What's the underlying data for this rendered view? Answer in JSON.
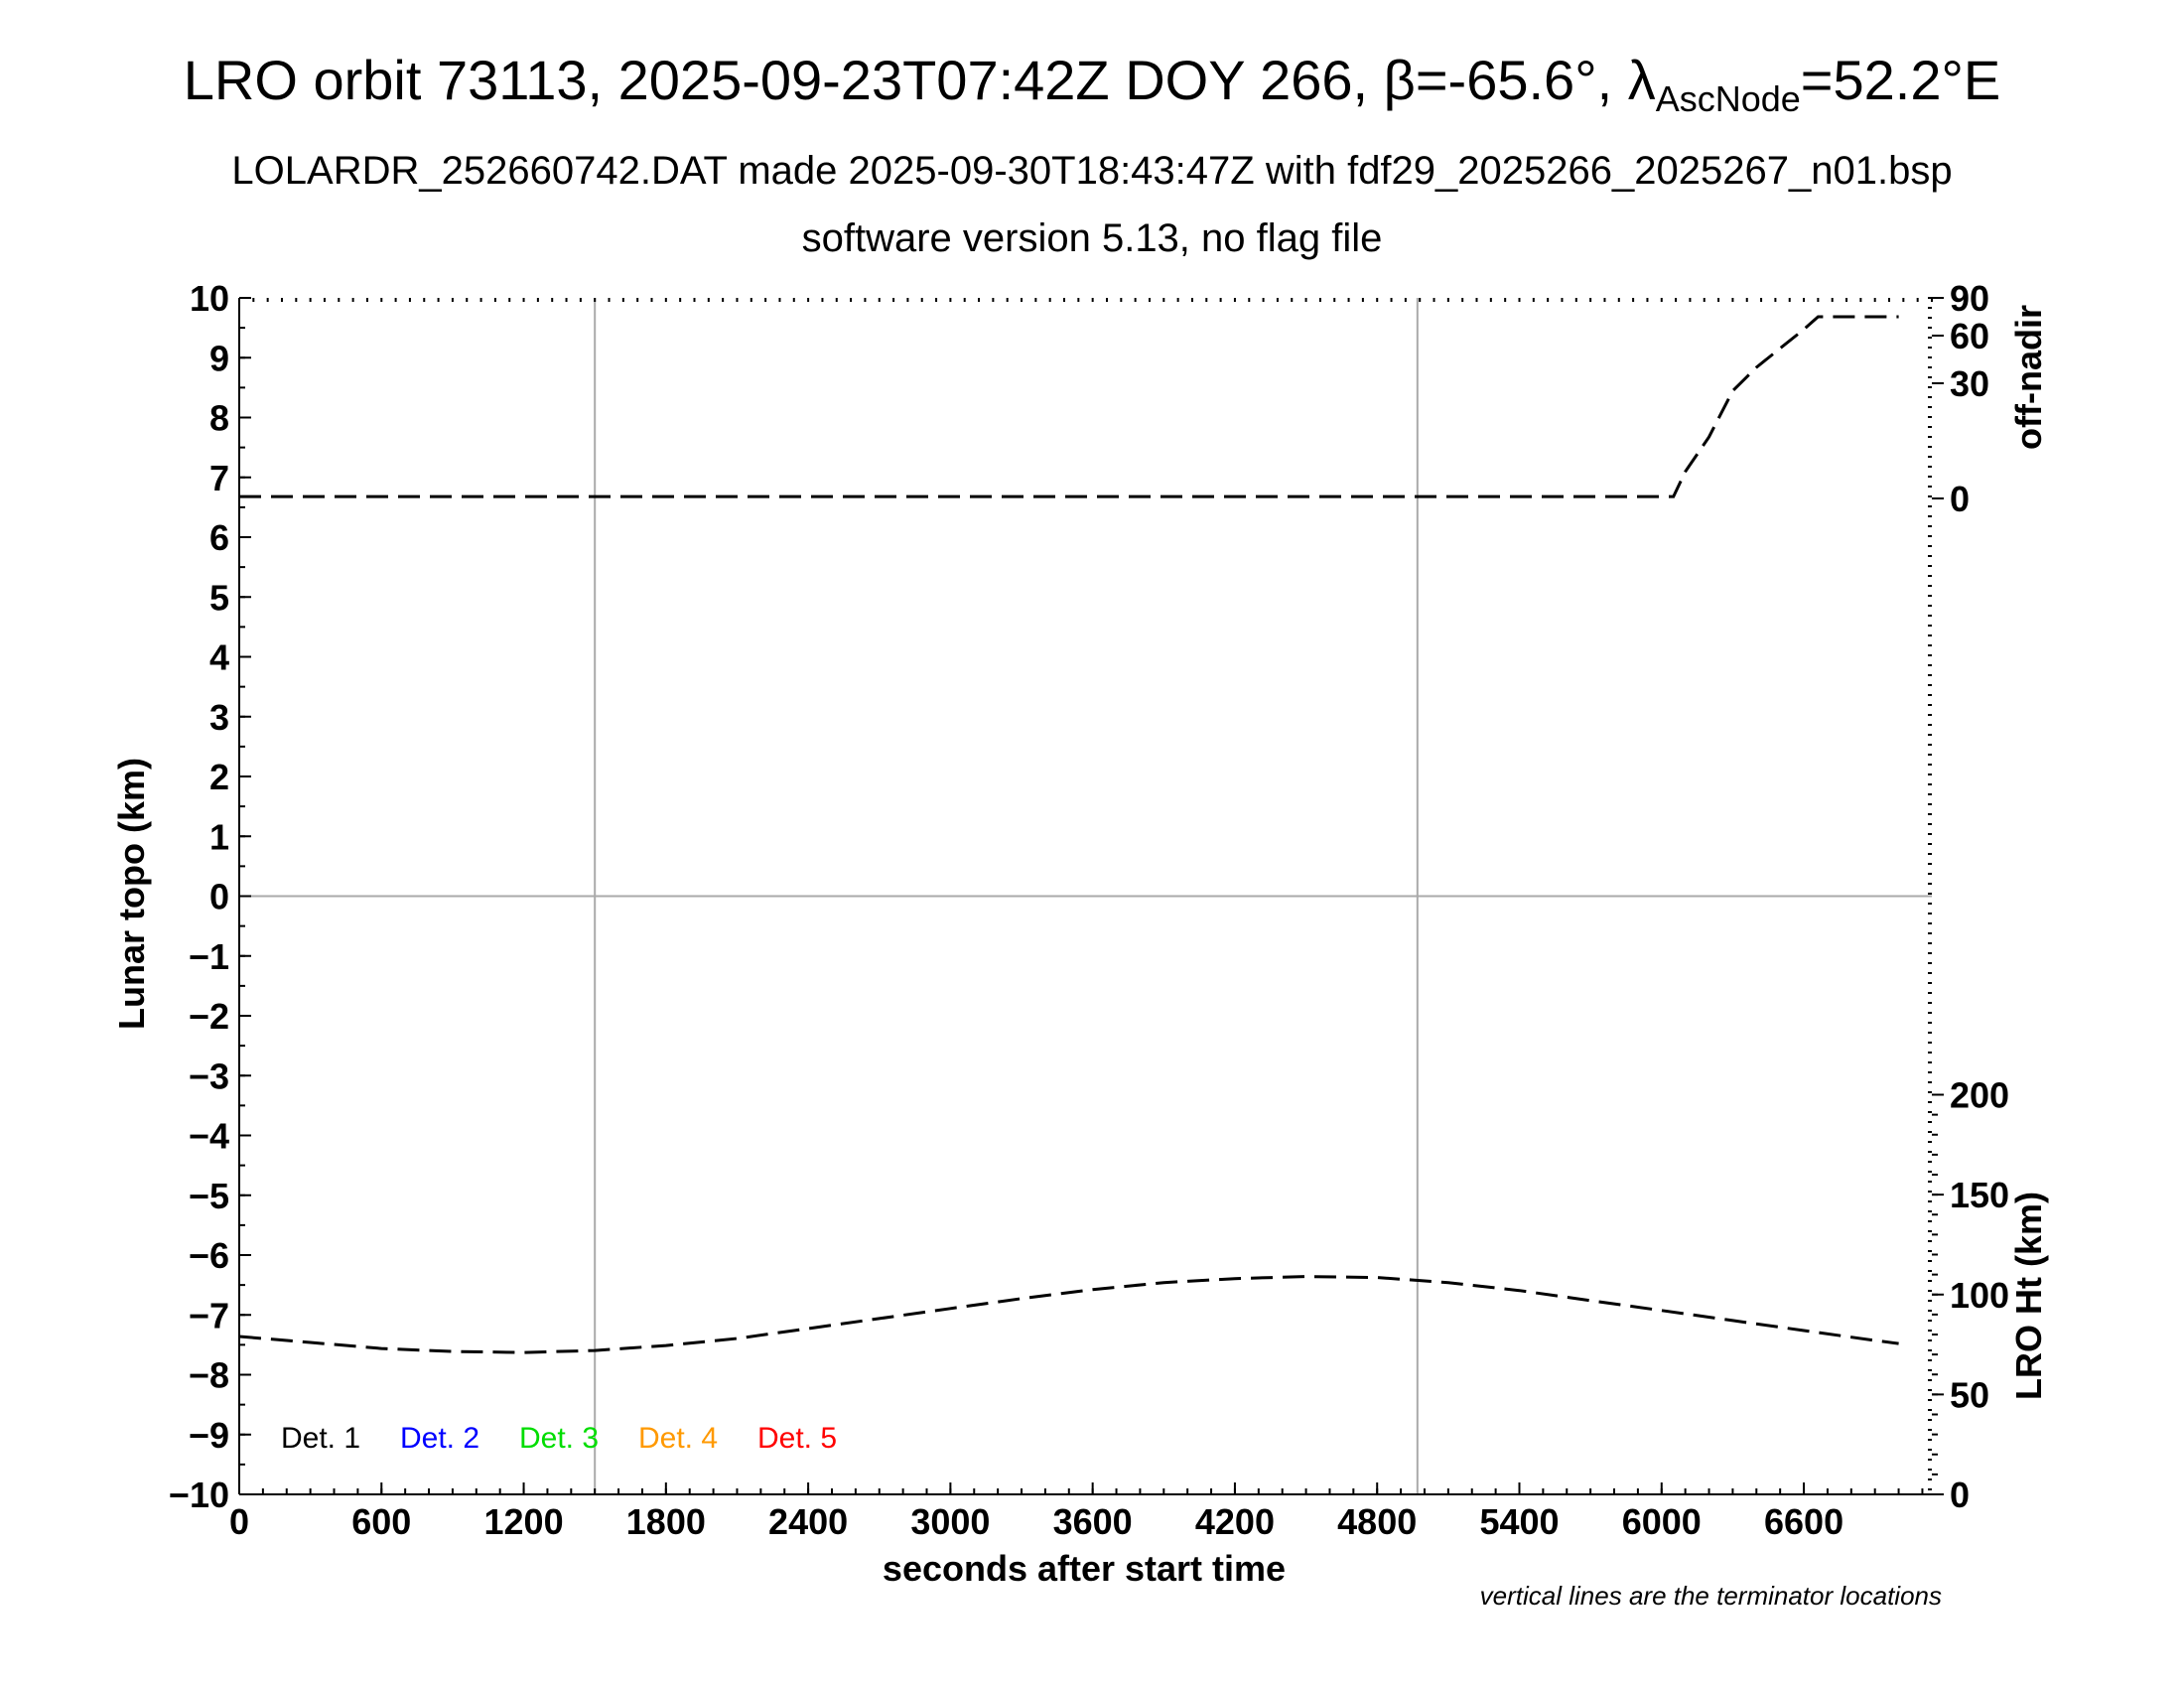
{
  "title_parts": {
    "main": "LRO orbit 73113, 2025-09-23T07:42Z DOY 266, β=-65.6°, λ",
    "sub": "AscNode",
    "tail": "=52.2°E"
  },
  "subtitle": "LOLARDR_252660742.DAT made 2025-09-30T18:43:47Z with fdf29_2025266_2025267_n01.bsp",
  "subtitle2": "software version 5.13, no flag file",
  "footnote": "vertical lines are the terminator locations",
  "chart_data": {
    "type": "line",
    "xlabel": "seconds after start time",
    "xlim": [
      0,
      7140
    ],
    "x_ticks": [
      0,
      600,
      1200,
      1800,
      2400,
      3000,
      3600,
      4200,
      4800,
      5400,
      6000,
      6600
    ],
    "x_tick_labels": [
      "0",
      "600",
      "1200",
      "1800",
      "2400",
      "3000",
      "3600",
      "4200",
      "4800",
      "5400",
      "6000",
      "6600"
    ],
    "axes": {
      "left": {
        "label": "Lunar topo (km)",
        "range": [
          -10,
          10
        ],
        "ticks": [
          10,
          9,
          8,
          7,
          6,
          5,
          4,
          3,
          2,
          1,
          0,
          -1,
          -2,
          -3,
          -4,
          -5,
          -6,
          -7,
          -8,
          -9,
          -10
        ],
        "tick_labels": [
          "10",
          "9",
          "8",
          "7",
          "6",
          "5",
          "4",
          "3",
          "2",
          "1",
          "0",
          "−1",
          "−2",
          "−3",
          "−4",
          "−5",
          "−6",
          "−7",
          "−8",
          "−9",
          "−10"
        ]
      },
      "right_top": {
        "label": "off-nadir",
        "ticks": [
          90,
          60,
          30,
          0
        ],
        "tick_labels": [
          "90",
          "60",
          "30",
          "0"
        ]
      },
      "right_bottom": {
        "label": "LRO Ht (km)",
        "range": [
          0,
          200
        ],
        "ticks": [
          200,
          150,
          100,
          50,
          0
        ],
        "tick_labels": [
          "200",
          "150",
          "100",
          "50",
          "0"
        ]
      }
    },
    "terminators_x": [
      1500,
      4970
    ],
    "grid": "zero line and terminator lines",
    "series": [
      {
        "name": "off-nadir",
        "axis": "right_top",
        "style": "dashed",
        "color": "#000000",
        "x": [
          0,
          1000,
          2000,
          3000,
          4000,
          5000,
          6050,
          6100,
          6200,
          6300,
          6400,
          6500,
          6600,
          6660,
          6900,
          7000
        ],
        "y": [
          0.5,
          0.5,
          0.5,
          0.5,
          0.5,
          0.5,
          0.5,
          7,
          16,
          28,
          40,
          52,
          65,
          75,
          75,
          75
        ]
      },
      {
        "name": "LRO Ht (km)",
        "axis": "right_bottom",
        "style": "dashed",
        "color": "#000000",
        "x": [
          0,
          300,
          600,
          900,
          1200,
          1500,
          1800,
          2100,
          2400,
          2700,
          3000,
          3300,
          3600,
          3900,
          4200,
          4500,
          4800,
          5100,
          5400,
          5700,
          6000,
          6300,
          6600,
          6900,
          7000
        ],
        "y": [
          79,
          76,
          73,
          71.5,
          71,
          72,
          74.5,
          78,
          83,
          88,
          93,
          98,
          102.5,
          106,
          108,
          109,
          108.5,
          106,
          102,
          97,
          92,
          87,
          82,
          77,
          75.5
        ]
      }
    ],
    "legend": {
      "position": "bottom-left",
      "entries": [
        {
          "label": "Det. 1",
          "color": "#000000"
        },
        {
          "label": "Det. 2",
          "color": "#0000ff"
        },
        {
          "label": "Det. 3",
          "color": "#00dd00"
        },
        {
          "label": "Det. 4",
          "color": "#ff9900"
        },
        {
          "label": "Det. 5",
          "color": "#ff0000"
        }
      ]
    }
  }
}
